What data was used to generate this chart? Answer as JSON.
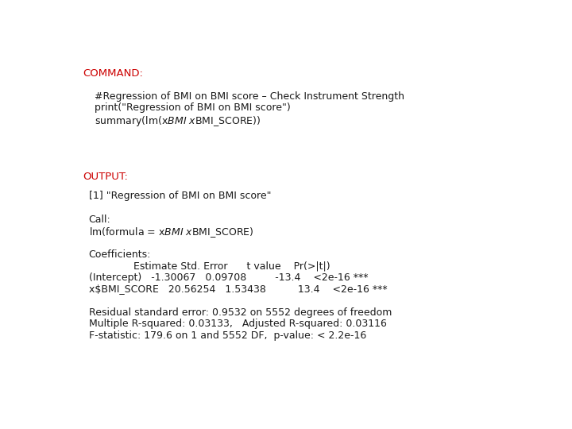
{
  "bg_color": "#ffffff",
  "command_label": "COMMAND:",
  "command_label_color": "#cc0000",
  "command_lines": [
    "#Regression of BMI on BMI score – Check Instrument Strength",
    "print(\"Regression of BMI on BMI score\")",
    "summary(lm(x$BMI ~ x$BMI_SCORE))"
  ],
  "output_label": "OUTPUT:",
  "output_label_color": "#cc0000",
  "output_lines": [
    "[1] \"Regression of BMI on BMI score\"",
    "",
    "Call:",
    "lm(formula = x$BMI ~ x$BMI_SCORE)",
    "",
    "Coefficients:",
    "              Estimate Std. Error      t value    Pr(>|t|)",
    "(Intercept)   -1.30067   0.09708         -13.4    <2e-16 ***",
    "x$BMI_SCORE   20.56254   1.53438          13.4    <2e-16 ***",
    "",
    "Residual standard error: 0.9532 on 5552 degrees of freedom",
    "Multiple R-squared: 0.03133,   Adjusted R-squared: 0.03116",
    "F-statistic: 179.6 on 1 and 5552 DF,  p-value: < 2.2e-16"
  ],
  "font_size_label": 9.5,
  "font_size_text": 9.0,
  "text_color": "#1a1a1a",
  "sans_font": "DejaVu Sans"
}
